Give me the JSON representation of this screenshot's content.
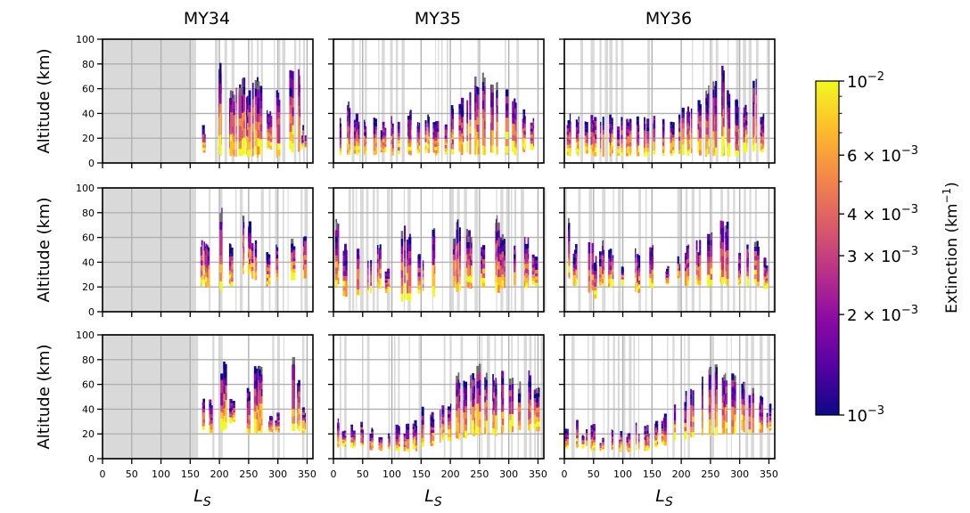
{
  "chart_data": {
    "type": "heatmap",
    "layout": {
      "rows": 3,
      "columns": 3
    },
    "column_titles": [
      "MY34",
      "MY35",
      "MY36"
    ],
    "ylabel": "Altitude (km)",
    "xlabel": "L",
    "xlabel_subscript": "S",
    "x_range": [
      0,
      360
    ],
    "y_range": [
      0,
      100
    ],
    "x_ticks": [
      0,
      50,
      100,
      150,
      200,
      250,
      300,
      350
    ],
    "x_tick_labels": [
      "0",
      "50",
      "100",
      "150",
      "200",
      "250",
      "300",
      "350"
    ],
    "y_ticks": [
      0,
      20,
      40,
      60,
      80,
      100
    ],
    "y_tick_labels": [
      "0",
      "20",
      "40",
      "60",
      "80",
      "100"
    ],
    "grid": true,
    "no_data_color": "#d9d9d9",
    "saturated_color": "#6e6e6e",
    "colorbar": {
      "label": "Extinction (km",
      "label_unit_superscript": "−1",
      "label_close": ")",
      "scale": "log",
      "colormap": "plasma",
      "colors": [
        "#0d0887",
        "#5402a3",
        "#8b0aa5",
        "#b93289",
        "#db5c68",
        "#f48849",
        "#febd2a",
        "#f0f921"
      ],
      "range": [
        0.001,
        0.01
      ],
      "ticks": [
        {
          "value": 0.01,
          "mantissa": "",
          "exponent": "−2"
        },
        {
          "value": 0.006,
          "mantissa": "6 × ",
          "exponent": "−3"
        },
        {
          "value": 0.004,
          "mantissa": "4 × ",
          "exponent": "−3"
        },
        {
          "value": 0.003,
          "mantissa": "3 × ",
          "exponent": "−3"
        },
        {
          "value": 0.002,
          "mantissa": "2 × ",
          "exponent": "−3"
        },
        {
          "value": 0.001,
          "mantissa": "",
          "exponent": "−3"
        }
      ],
      "tick_base": "10"
    },
    "panels": [
      {
        "row": 0,
        "col": 0,
        "year": "MY34",
        "data_start_ls": 160,
        "profiles": [
          {
            "ls": 172,
            "top": 32,
            "bottom": 8
          },
          {
            "ls": 200,
            "top": 85,
            "bottom": 6
          },
          {
            "ls": 222,
            "top": 60,
            "bottom": 5
          },
          {
            "ls": 232,
            "top": 65,
            "bottom": 4
          },
          {
            "ls": 240,
            "top": 70,
            "bottom": 4
          },
          {
            "ls": 250,
            "top": 60,
            "bottom": 4
          },
          {
            "ls": 260,
            "top": 68,
            "bottom": 4
          },
          {
            "ls": 268,
            "top": 70,
            "bottom": 4
          },
          {
            "ls": 285,
            "top": 45,
            "bottom": 10
          },
          {
            "ls": 300,
            "top": 60,
            "bottom": 4
          },
          {
            "ls": 325,
            "top": 82,
            "bottom": 8
          },
          {
            "ls": 335,
            "top": 80,
            "bottom": 8
          },
          {
            "ls": 345,
            "top": 32,
            "bottom": 10
          }
        ]
      },
      {
        "row": 0,
        "col": 1,
        "year": "MY35",
        "data_start_ls": 0,
        "profiles": [
          {
            "ls": 10,
            "top": 40,
            "bottom": 6
          },
          {
            "ls": 25,
            "top": 50,
            "bottom": 6
          },
          {
            "ls": 40,
            "top": 40,
            "bottom": 6
          },
          {
            "ls": 55,
            "top": 35,
            "bottom": 6
          },
          {
            "ls": 70,
            "top": 42,
            "bottom": 6
          },
          {
            "ls": 85,
            "top": 35,
            "bottom": 6
          },
          {
            "ls": 100,
            "top": 40,
            "bottom": 6
          },
          {
            "ls": 115,
            "top": 38,
            "bottom": 6
          },
          {
            "ls": 130,
            "top": 45,
            "bottom": 6
          },
          {
            "ls": 145,
            "top": 38,
            "bottom": 6
          },
          {
            "ls": 160,
            "top": 42,
            "bottom": 6
          },
          {
            "ls": 175,
            "top": 40,
            "bottom": 6
          },
          {
            "ls": 190,
            "top": 35,
            "bottom": 6
          },
          {
            "ls": 205,
            "top": 48,
            "bottom": 6
          },
          {
            "ls": 220,
            "top": 55,
            "bottom": 6
          },
          {
            "ls": 232,
            "top": 60,
            "bottom": 6
          },
          {
            "ls": 245,
            "top": 70,
            "bottom": 6
          },
          {
            "ls": 258,
            "top": 75,
            "bottom": 6
          },
          {
            "ls": 270,
            "top": 70,
            "bottom": 6
          },
          {
            "ls": 282,
            "top": 72,
            "bottom": 6
          },
          {
            "ls": 295,
            "top": 60,
            "bottom": 6
          },
          {
            "ls": 310,
            "top": 55,
            "bottom": 6
          },
          {
            "ls": 325,
            "top": 45,
            "bottom": 8
          },
          {
            "ls": 340,
            "top": 40,
            "bottom": 8
          }
        ]
      },
      {
        "row": 0,
        "col": 2,
        "year": "MY36",
        "data_start_ls": 0,
        "profiles": [
          {
            "ls": 8,
            "top": 40,
            "bottom": 5
          },
          {
            "ls": 22,
            "top": 42,
            "bottom": 5
          },
          {
            "ls": 36,
            "top": 35,
            "bottom": 5
          },
          {
            "ls": 50,
            "top": 40,
            "bottom": 5
          },
          {
            "ls": 65,
            "top": 38,
            "bottom": 5
          },
          {
            "ls": 80,
            "top": 40,
            "bottom": 5
          },
          {
            "ls": 95,
            "top": 38,
            "bottom": 5
          },
          {
            "ls": 110,
            "top": 42,
            "bottom": 5
          },
          {
            "ls": 125,
            "top": 40,
            "bottom": 5
          },
          {
            "ls": 140,
            "top": 38,
            "bottom": 5
          },
          {
            "ls": 155,
            "top": 40,
            "bottom": 5
          },
          {
            "ls": 170,
            "top": 38,
            "bottom": 5
          },
          {
            "ls": 185,
            "top": 35,
            "bottom": 5
          },
          {
            "ls": 200,
            "top": 45,
            "bottom": 5
          },
          {
            "ls": 215,
            "top": 50,
            "bottom": 5
          },
          {
            "ls": 230,
            "top": 55,
            "bottom": 5
          },
          {
            "ls": 245,
            "top": 65,
            "bottom": 5
          },
          {
            "ls": 258,
            "top": 70,
            "bottom": 5
          },
          {
            "ls": 270,
            "top": 80,
            "bottom": 5
          },
          {
            "ls": 282,
            "top": 65,
            "bottom": 5
          },
          {
            "ls": 295,
            "top": 55,
            "bottom": 5
          },
          {
            "ls": 310,
            "top": 48,
            "bottom": 8
          },
          {
            "ls": 325,
            "top": 70,
            "bottom": 8
          },
          {
            "ls": 340,
            "top": 40,
            "bottom": 8
          }
        ]
      },
      {
        "row": 1,
        "col": 0,
        "year": "MY34",
        "data_start_ls": 160,
        "profiles": [
          {
            "ls": 172,
            "top": 60,
            "bottom": 20
          },
          {
            "ls": 180,
            "top": 55,
            "bottom": 18
          },
          {
            "ls": 205,
            "top": 85,
            "bottom": 15
          },
          {
            "ls": 220,
            "top": 60,
            "bottom": 20
          },
          {
            "ls": 240,
            "top": 78,
            "bottom": 30
          },
          {
            "ls": 250,
            "top": 75,
            "bottom": 30
          },
          {
            "ls": 260,
            "top": 60,
            "bottom": 25
          },
          {
            "ls": 285,
            "top": 50,
            "bottom": 20
          },
          {
            "ls": 300,
            "top": 55,
            "bottom": 25
          },
          {
            "ls": 325,
            "top": 60,
            "bottom": 25
          },
          {
            "ls": 345,
            "top": 70,
            "bottom": 25
          }
        ]
      },
      {
        "row": 1,
        "col": 1,
        "year": "MY35",
        "data_start_ls": 0,
        "profiles": [
          {
            "ls": 5,
            "top": 75,
            "bottom": 20
          },
          {
            "ls": 20,
            "top": 58,
            "bottom": 12
          },
          {
            "ls": 45,
            "top": 55,
            "bottom": 12
          },
          {
            "ls": 62,
            "top": 50,
            "bottom": 12
          },
          {
            "ls": 78,
            "top": 55,
            "bottom": 18
          },
          {
            "ls": 92,
            "top": 40,
            "bottom": 15
          },
          {
            "ls": 120,
            "top": 72,
            "bottom": 8
          },
          {
            "ls": 130,
            "top": 68,
            "bottom": 8
          },
          {
            "ls": 150,
            "top": 48,
            "bottom": 14
          },
          {
            "ls": 172,
            "top": 68,
            "bottom": 12
          },
          {
            "ls": 205,
            "top": 65,
            "bottom": 18
          },
          {
            "ls": 215,
            "top": 75,
            "bottom": 15
          },
          {
            "ls": 232,
            "top": 68,
            "bottom": 18
          },
          {
            "ls": 255,
            "top": 55,
            "bottom": 18
          },
          {
            "ls": 280,
            "top": 78,
            "bottom": 15
          },
          {
            "ls": 290,
            "top": 65,
            "bottom": 18
          },
          {
            "ls": 310,
            "top": 55,
            "bottom": 20
          },
          {
            "ls": 330,
            "top": 62,
            "bottom": 18
          },
          {
            "ls": 345,
            "top": 50,
            "bottom": 20
          }
        ]
      },
      {
        "row": 1,
        "col": 2,
        "year": "MY36",
        "data_start_ls": 0,
        "profiles": [
          {
            "ls": 8,
            "top": 78,
            "bottom": 25
          },
          {
            "ls": 20,
            "top": 55,
            "bottom": 20
          },
          {
            "ls": 45,
            "top": 60,
            "bottom": 15
          },
          {
            "ls": 55,
            "top": 48,
            "bottom": 10
          },
          {
            "ls": 65,
            "top": 58,
            "bottom": 20
          },
          {
            "ls": 80,
            "top": 55,
            "bottom": 18
          },
          {
            "ls": 100,
            "top": 40,
            "bottom": 20
          },
          {
            "ls": 125,
            "top": 55,
            "bottom": 15
          },
          {
            "ls": 150,
            "top": 55,
            "bottom": 18
          },
          {
            "ls": 175,
            "top": 42,
            "bottom": 20
          },
          {
            "ls": 195,
            "top": 48,
            "bottom": 25
          },
          {
            "ls": 210,
            "top": 55,
            "bottom": 20
          },
          {
            "ls": 230,
            "top": 58,
            "bottom": 20
          },
          {
            "ls": 250,
            "top": 70,
            "bottom": 20
          },
          {
            "ls": 268,
            "top": 78,
            "bottom": 22
          },
          {
            "ls": 280,
            "top": 75,
            "bottom": 20
          },
          {
            "ls": 300,
            "top": 48,
            "bottom": 20
          },
          {
            "ls": 315,
            "top": 55,
            "bottom": 20
          },
          {
            "ls": 330,
            "top": 60,
            "bottom": 20
          },
          {
            "ls": 345,
            "top": 45,
            "bottom": 18
          }
        ]
      },
      {
        "row": 2,
        "col": 0,
        "year": "MY34",
        "data_start_ls": 160,
        "profiles": [
          {
            "ls": 172,
            "top": 55,
            "bottom": 22
          },
          {
            "ls": 185,
            "top": 50,
            "bottom": 20
          },
          {
            "ls": 205,
            "top": 75,
            "bottom": 22
          },
          {
            "ls": 210,
            "top": 80,
            "bottom": 22
          },
          {
            "ls": 222,
            "top": 50,
            "bottom": 28
          },
          {
            "ls": 250,
            "top": 60,
            "bottom": 20
          },
          {
            "ls": 262,
            "top": 78,
            "bottom": 20
          },
          {
            "ls": 270,
            "top": 75,
            "bottom": 20
          },
          {
            "ls": 290,
            "top": 35,
            "bottom": 20
          },
          {
            "ls": 300,
            "top": 38,
            "bottom": 20
          },
          {
            "ls": 325,
            "top": 85,
            "bottom": 22
          },
          {
            "ls": 335,
            "top": 70,
            "bottom": 22
          },
          {
            "ls": 345,
            "top": 45,
            "bottom": 20
          }
        ]
      },
      {
        "row": 2,
        "col": 1,
        "year": "MY35",
        "data_start_ls": 0,
        "profiles": [
          {
            "ls": 5,
            "top": 35,
            "bottom": 8
          },
          {
            "ls": 20,
            "top": 30,
            "bottom": 8
          },
          {
            "ls": 35,
            "top": 32,
            "bottom": 8
          },
          {
            "ls": 50,
            "top": 30,
            "bottom": 8
          },
          {
            "ls": 65,
            "top": 28,
            "bottom": 6
          },
          {
            "ls": 80,
            "top": 25,
            "bottom": 6
          },
          {
            "ls": 95,
            "top": 28,
            "bottom": 6
          },
          {
            "ls": 110,
            "top": 28,
            "bottom": 5
          },
          {
            "ls": 125,
            "top": 30,
            "bottom": 5
          },
          {
            "ls": 140,
            "top": 35,
            "bottom": 5
          },
          {
            "ls": 155,
            "top": 45,
            "bottom": 8
          },
          {
            "ls": 170,
            "top": 40,
            "bottom": 10
          },
          {
            "ls": 185,
            "top": 45,
            "bottom": 12
          },
          {
            "ls": 200,
            "top": 50,
            "bottom": 12
          },
          {
            "ls": 212,
            "top": 70,
            "bottom": 15
          },
          {
            "ls": 225,
            "top": 65,
            "bottom": 15
          },
          {
            "ls": 238,
            "top": 72,
            "bottom": 18
          },
          {
            "ls": 250,
            "top": 78,
            "bottom": 18
          },
          {
            "ls": 262,
            "top": 75,
            "bottom": 18
          },
          {
            "ls": 275,
            "top": 70,
            "bottom": 18
          },
          {
            "ls": 290,
            "top": 78,
            "bottom": 20
          },
          {
            "ls": 305,
            "top": 72,
            "bottom": 20
          },
          {
            "ls": 320,
            "top": 65,
            "bottom": 22
          },
          {
            "ls": 335,
            "top": 72,
            "bottom": 22
          },
          {
            "ls": 348,
            "top": 60,
            "bottom": 22
          }
        ]
      },
      {
        "row": 2,
        "col": 2,
        "year": "MY36",
        "data_start_ls": 0,
        "profiles": [
          {
            "ls": 5,
            "top": 28,
            "bottom": 8
          },
          {
            "ls": 20,
            "top": 32,
            "bottom": 8
          },
          {
            "ls": 35,
            "top": 25,
            "bottom": 8
          },
          {
            "ls": 50,
            "top": 28,
            "bottom": 6
          },
          {
            "ls": 65,
            "top": 22,
            "bottom": 5
          },
          {
            "ls": 80,
            "top": 25,
            "bottom": 5
          },
          {
            "ls": 95,
            "top": 25,
            "bottom": 5
          },
          {
            "ls": 110,
            "top": 22,
            "bottom": 5
          },
          {
            "ls": 125,
            "top": 30,
            "bottom": 5
          },
          {
            "ls": 140,
            "top": 28,
            "bottom": 6
          },
          {
            "ls": 155,
            "top": 35,
            "bottom": 8
          },
          {
            "ls": 170,
            "top": 40,
            "bottom": 10
          },
          {
            "ls": 190,
            "top": 45,
            "bottom": 12
          },
          {
            "ls": 205,
            "top": 55,
            "bottom": 15
          },
          {
            "ls": 220,
            "top": 65,
            "bottom": 15
          },
          {
            "ls": 235,
            "top": 70,
            "bottom": 18
          },
          {
            "ls": 250,
            "top": 80,
            "bottom": 18
          },
          {
            "ls": 262,
            "top": 78,
            "bottom": 18
          },
          {
            "ls": 275,
            "top": 72,
            "bottom": 18
          },
          {
            "ls": 290,
            "top": 75,
            "bottom": 18
          },
          {
            "ls": 305,
            "top": 68,
            "bottom": 20
          },
          {
            "ls": 320,
            "top": 60,
            "bottom": 20
          },
          {
            "ls": 335,
            "top": 55,
            "bottom": 20
          },
          {
            "ls": 350,
            "top": 45,
            "bottom": 22
          }
        ]
      }
    ]
  }
}
